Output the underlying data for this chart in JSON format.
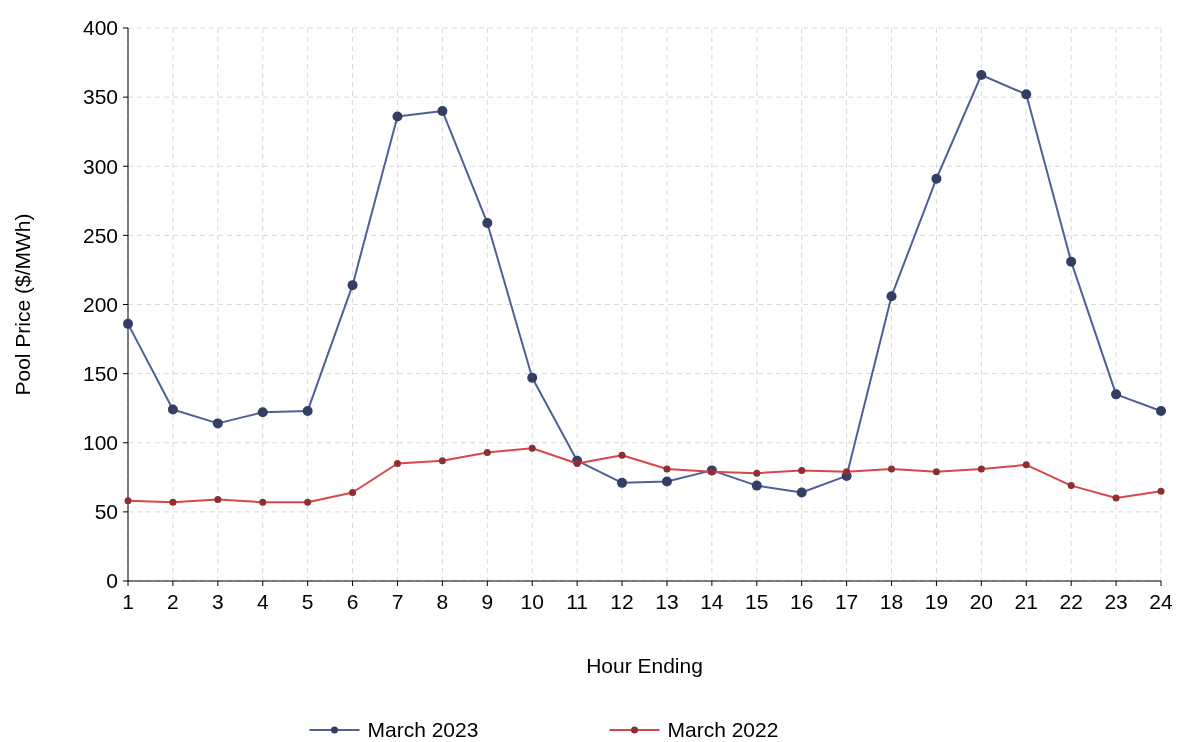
{
  "chart_data": {
    "type": "line",
    "xlabel": "Hour Ending",
    "ylabel": "Pool Price ($/MWh)",
    "x": [
      1,
      2,
      3,
      4,
      5,
      6,
      7,
      8,
      9,
      10,
      11,
      12,
      13,
      14,
      15,
      16,
      17,
      18,
      19,
      20,
      21,
      22,
      23,
      24
    ],
    "series": [
      {
        "name": "March 2023",
        "color": "#4f6096",
        "values": [
          186,
          124,
          114,
          122,
          123,
          214,
          336,
          340,
          259,
          147,
          87,
          71,
          72,
          80,
          69,
          64,
          76,
          206,
          291,
          366,
          352,
          231,
          135,
          123
        ]
      },
      {
        "name": "March 2022",
        "color": "#d9464a",
        "values": [
          58,
          57,
          59,
          57,
          57,
          64,
          85,
          87,
          93,
          96,
          85,
          91,
          81,
          79,
          78,
          80,
          79,
          81,
          79,
          81,
          84,
          69,
          60,
          65
        ]
      }
    ],
    "xlim": [
      1,
      24
    ],
    "xticks": [
      1,
      2,
      3,
      4,
      5,
      6,
      7,
      8,
      9,
      10,
      11,
      12,
      13,
      14,
      15,
      16,
      17,
      18,
      19,
      20,
      21,
      22,
      23,
      24
    ],
    "ylim": [
      0,
      400
    ],
    "yticks": [
      0,
      50,
      100,
      150,
      200,
      250,
      300,
      350,
      400
    ],
    "grid": true,
    "legend": "bottom",
    "marker": "circle",
    "line_style": "solid"
  }
}
